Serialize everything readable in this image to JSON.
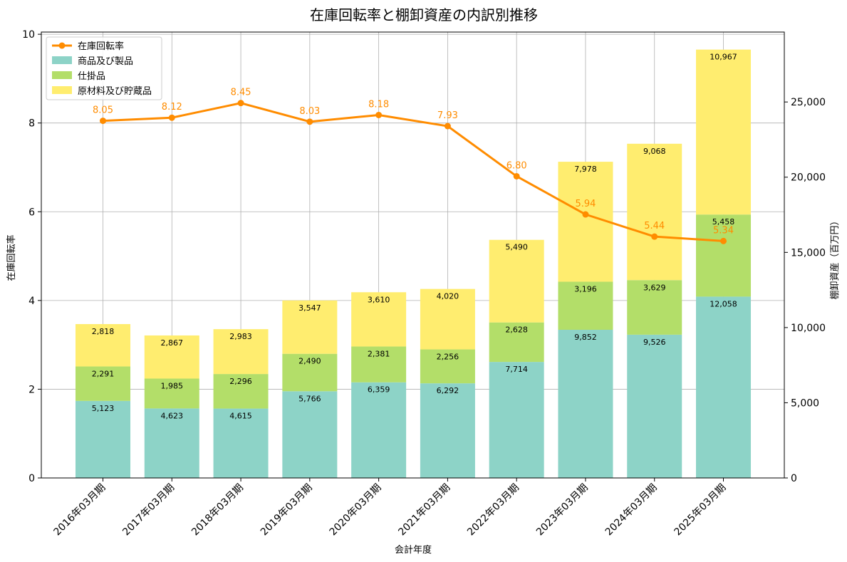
{
  "chart_data": {
    "type": "bar",
    "title": "在庫回転率と棚卸資産の内訳別推移",
    "xlabel": "会計年度",
    "ylabel_left": "在庫回転率",
    "ylabel_right": "棚卸資産（百万円）",
    "categories": [
      "2016年03月期",
      "2017年03月期",
      "2018年03月期",
      "2019年03月期",
      "2020年03月期",
      "2021年03月期",
      "2022年03月期",
      "2023年03月期",
      "2024年03月期",
      "2025年03月期"
    ],
    "stacked": true,
    "series": [
      {
        "name": "商品及び製品",
        "color": "#8dd3c7",
        "values": [
          5123,
          4623,
          4615,
          5766,
          6359,
          6292,
          7714,
          9852,
          9526,
          12058
        ],
        "labels": [
          "5,123",
          "4,623",
          "4,615",
          "5,766",
          "6,359",
          "6,292",
          "7,714",
          "9,852",
          "9,526",
          "12,058"
        ]
      },
      {
        "name": "仕掛品",
        "color": "#b3de69",
        "values": [
          2291,
          1985,
          2296,
          2490,
          2381,
          2256,
          2628,
          3196,
          3629,
          5458
        ],
        "labels": [
          "2,291",
          "1,985",
          "2,296",
          "2,490",
          "2,381",
          "2,256",
          "2,628",
          "3,196",
          "3,629",
          "5,458"
        ]
      },
      {
        "name": "原材料及び貯蔵品",
        "color": "#ffed6f",
        "values": [
          2818,
          2867,
          2983,
          3547,
          3610,
          4020,
          5490,
          7978,
          9068,
          10967
        ],
        "labels": [
          "2,818",
          "2,867",
          "2,983",
          "3,547",
          "3,610",
          "4,020",
          "5,490",
          "7,978",
          "9,068",
          "10,967"
        ]
      }
    ],
    "line_series": {
      "name": "在庫回転率",
      "color": "#ff8c00",
      "values": [
        8.05,
        8.12,
        8.45,
        8.03,
        8.18,
        7.93,
        6.8,
        5.94,
        5.44,
        5.34
      ],
      "labels": [
        "8.05",
        "8.12",
        "8.45",
        "8.03",
        "8.18",
        "7.93",
        "6.80",
        "5.94",
        "5.44",
        "5.34"
      ]
    },
    "ylim_left": [
      0,
      10.05
    ],
    "yticks_left": [
      "0",
      "2",
      "4",
      "6",
      "8",
      "10"
    ],
    "ylim_right": [
      0,
      29650
    ],
    "yticks_right": [
      "0",
      "5,000",
      "10,000",
      "15,000",
      "20,000",
      "25,000"
    ],
    "legend_position": "top-left",
    "grid": true
  }
}
